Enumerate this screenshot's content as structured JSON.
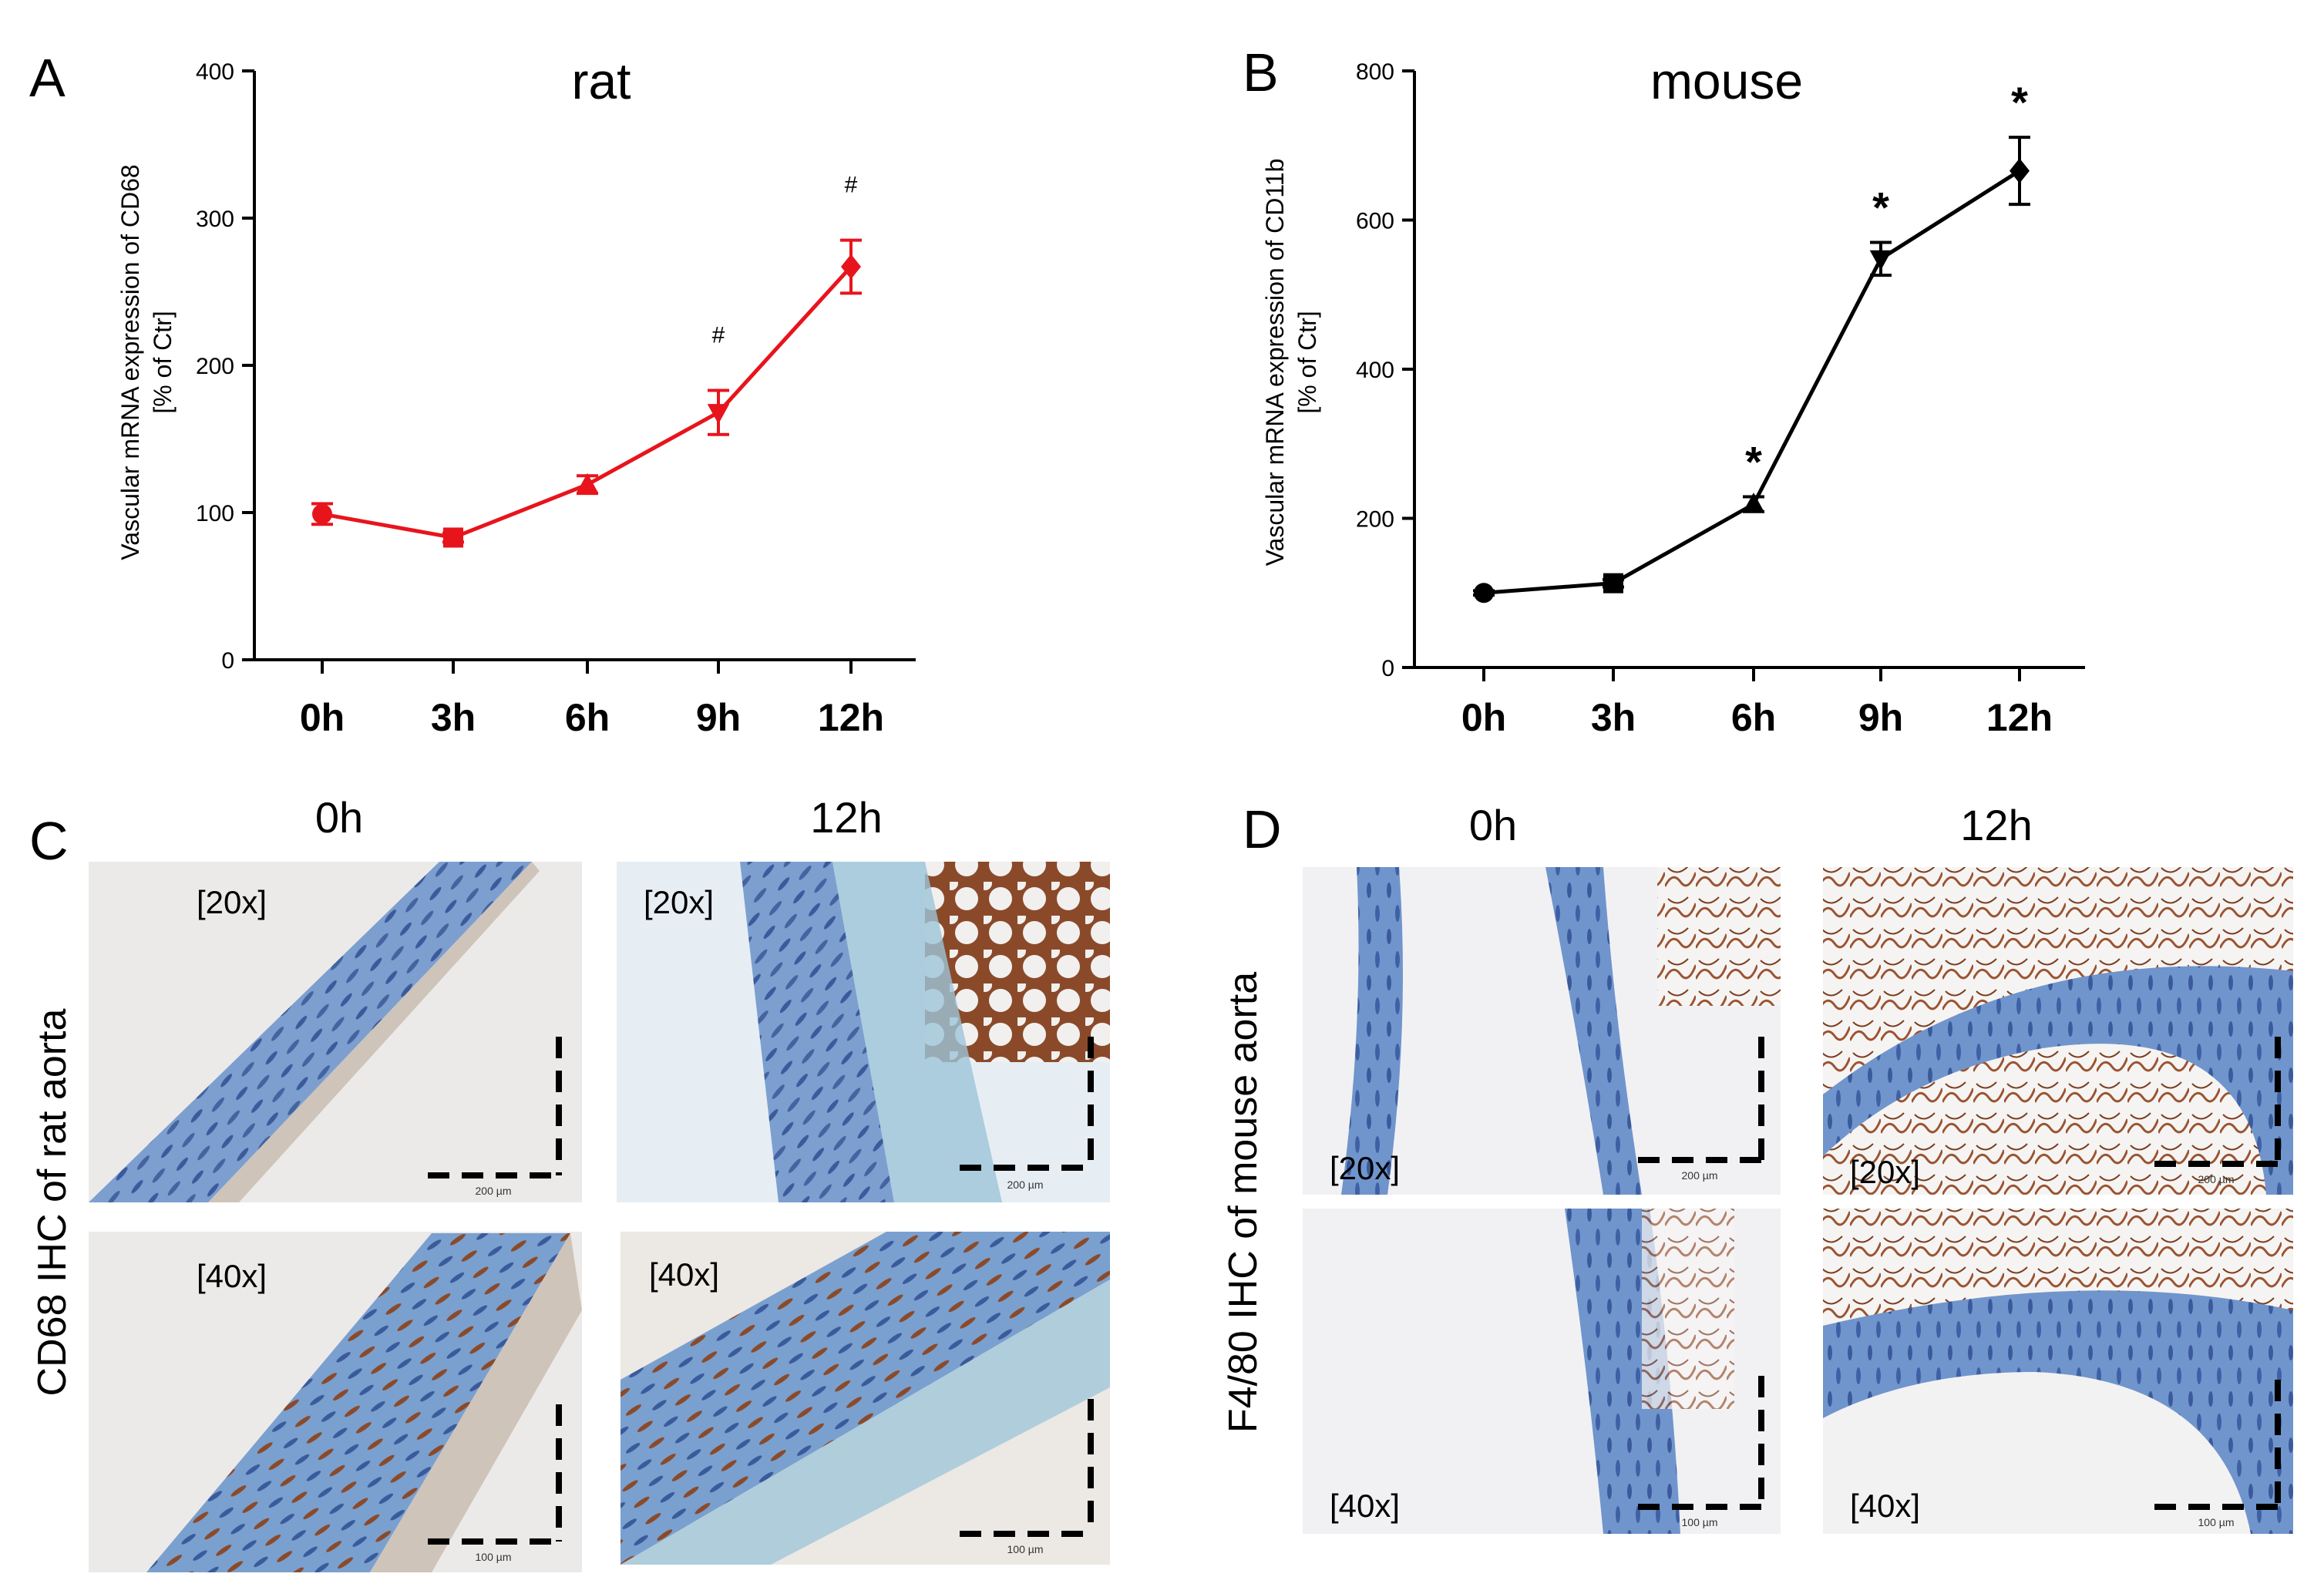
{
  "colors": {
    "rat": "#e8141c",
    "mouse": "#000000",
    "tissue_blue": "#5a7fbe",
    "stain_brown": "#8a4a2a"
  },
  "chart_data": [
    {
      "type": "line",
      "panel": "A",
      "title": "rat",
      "xlabel": "",
      "ylabel_lines": [
        "Vascular mRNA expression of CD68",
        "[% of Ctr]"
      ],
      "categories": [
        "0h",
        "3h",
        "6h",
        "9h",
        "12h"
      ],
      "values": [
        99,
        83,
        119,
        168,
        267
      ],
      "errors": [
        7,
        3,
        6,
        15,
        18
      ],
      "markers": [
        "circle",
        "square",
        "triangle-up",
        "triangle-down",
        "diamond"
      ],
      "annotations": [
        "",
        "",
        "",
        "#",
        "#"
      ],
      "ylim": [
        0,
        400
      ],
      "yticks": [
        0,
        100,
        200,
        300,
        400
      ],
      "color": "#e8141c"
    },
    {
      "type": "line",
      "panel": "B",
      "title": "mouse",
      "xlabel": "",
      "ylabel_lines": [
        "Vascular mRNA expression of CD11b",
        "[% of Ctr]"
      ],
      "categories": [
        "0h",
        "3h",
        "6h",
        "9h",
        "12h"
      ],
      "values": [
        100,
        113,
        219,
        548,
        666
      ],
      "errors": [
        3,
        5,
        10,
        22,
        45
      ],
      "markers": [
        "circle",
        "square",
        "triangle-up",
        "triangle-down",
        "diamond"
      ],
      "annotations": [
        "",
        "",
        "*",
        "*",
        "*"
      ],
      "ylim": [
        0,
        800
      ],
      "yticks": [
        0,
        200,
        400,
        600,
        800
      ],
      "color": "#000000"
    }
  ],
  "panel_c": {
    "letter": "C",
    "side_label": "CD68 IHC of rat aorta",
    "columns": [
      "0h",
      "12h"
    ],
    "images": [
      {
        "magnification": "[20x]",
        "scale": "200 µm"
      },
      {
        "magnification": "[20x]",
        "scale": "200 µm"
      },
      {
        "magnification": "[40x]",
        "scale": "100 µm"
      },
      {
        "magnification": "[40x]",
        "scale": "100 µm"
      }
    ]
  },
  "panel_d": {
    "letter": "D",
    "side_label": "F4/80 IHC of mouse aorta",
    "columns": [
      "0h",
      "12h"
    ],
    "images": [
      {
        "magnification": "[20x]",
        "scale": "200 µm"
      },
      {
        "magnification": "[20x]",
        "scale": "200 µm"
      },
      {
        "magnification": "[40x]",
        "scale": "100 µm"
      },
      {
        "magnification": "[40x]",
        "scale": "100 µm"
      }
    ]
  }
}
